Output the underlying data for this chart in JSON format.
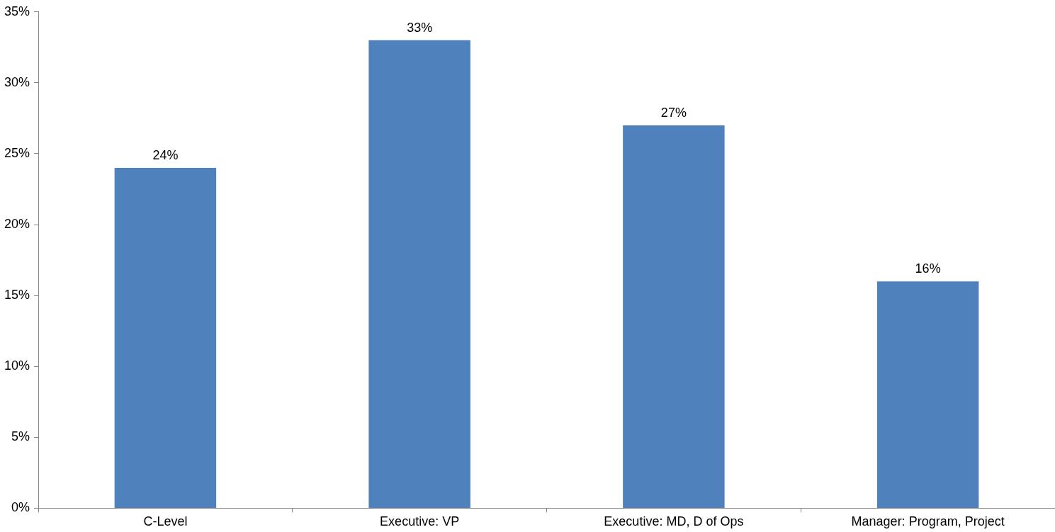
{
  "chart_data": {
    "type": "bar",
    "categories": [
      "C-Level",
      "Executive: VP",
      "Executive: MD, D of Ops",
      "Manager: Program, Project"
    ],
    "values": [
      24,
      33,
      27,
      16
    ],
    "value_labels": [
      "24%",
      "33%",
      "27%",
      "16%"
    ],
    "color": "#4f81bd",
    "ylim": [
      0,
      35
    ],
    "yticks": [
      {
        "value": 0,
        "label": "0%"
      },
      {
        "value": 5,
        "label": "5%"
      },
      {
        "value": 10,
        "label": "10%"
      },
      {
        "value": 15,
        "label": "15%"
      },
      {
        "value": 20,
        "label": "20%"
      },
      {
        "value": 25,
        "label": "25%"
      },
      {
        "value": 30,
        "label": "30%"
      },
      {
        "value": 35,
        "label": "35%"
      }
    ]
  }
}
